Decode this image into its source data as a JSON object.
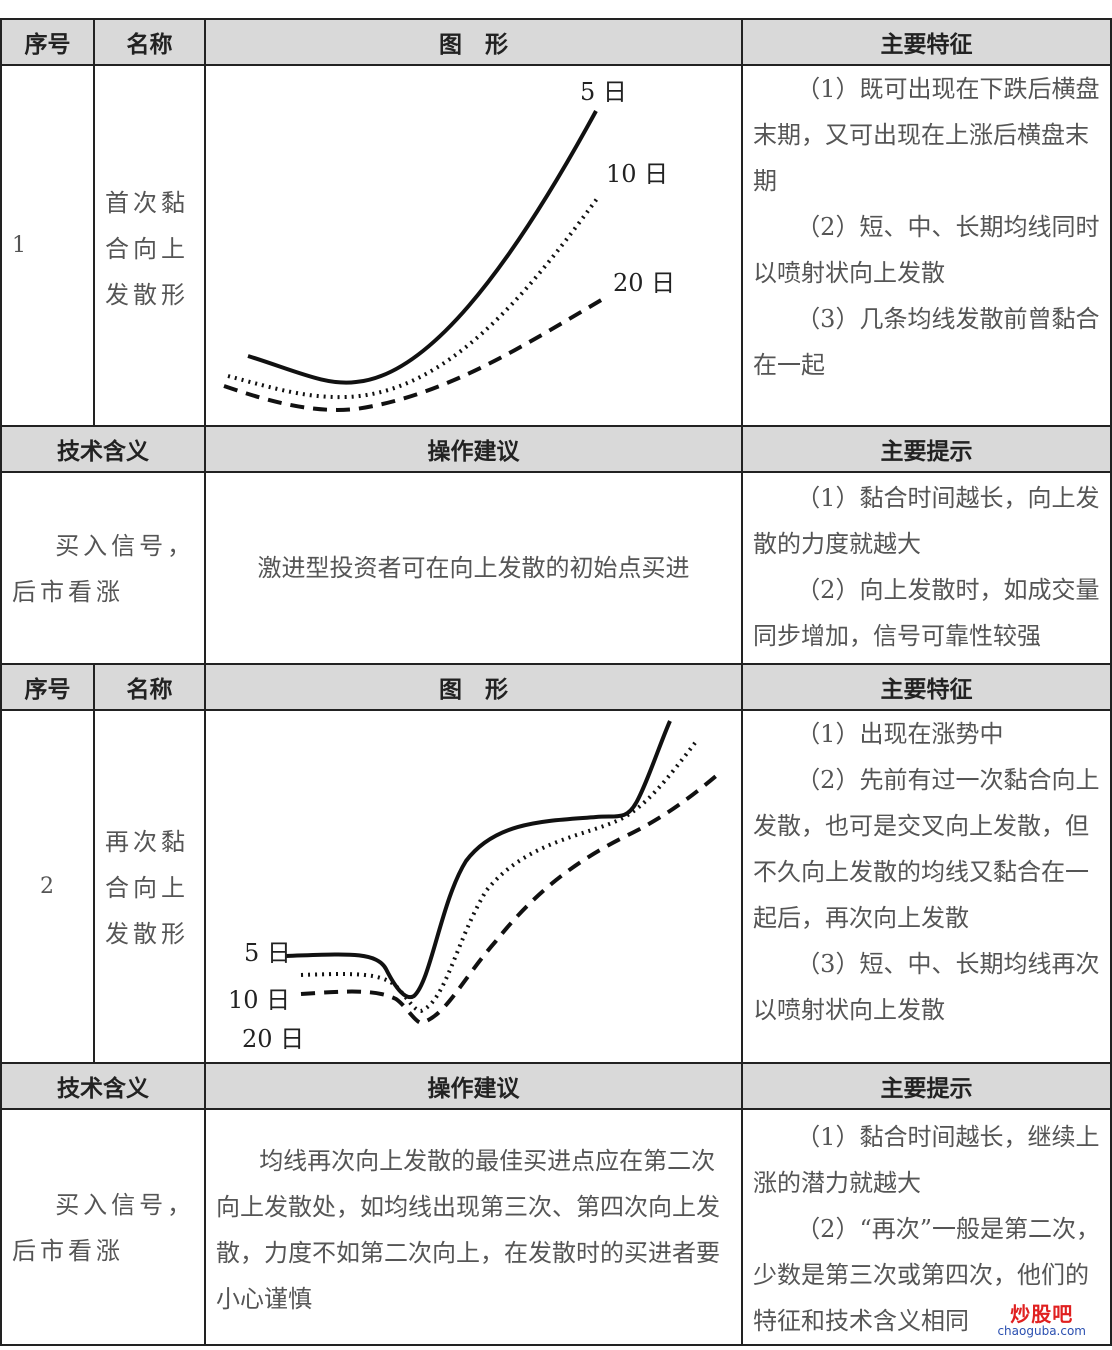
{
  "headers": {
    "seq": "序号",
    "name": "名称",
    "shape": "图　形",
    "features": "主要特征",
    "meaning": "技术含义",
    "advice": "操作建议",
    "tips": "主要提示"
  },
  "rows": [
    {
      "seq": "1",
      "name_lines": [
        "首次黏",
        "合向上",
        "发散形"
      ],
      "chart": {
        "labels": {
          "ma5": "5 日",
          "ma10": "10 日",
          "ma20": "20 日"
        }
      },
      "features": [
        "（1）既可出现在下跌后横盘末期，又可出现在上涨后横盘末期",
        "（2）短、中、长期均线同时以喷射状向上发散",
        "（3）几条均线发散前曾黏合在一起"
      ],
      "meaning": "买入信号，后市看涨",
      "advice": "激进型投资者可在向上发散的初始点买进",
      "tips": [
        "（1）黏合时间越长，向上发散的力度就越大",
        "（2）向上发散时，如成交量同步增加，信号可靠性较强"
      ]
    },
    {
      "seq": "2",
      "name_lines": [
        "再次黏",
        "合向上",
        "发散形"
      ],
      "chart": {
        "labels": {
          "ma5": "5 日",
          "ma10": "10 日",
          "ma20": "20 日"
        }
      },
      "features": [
        "（1）出现在涨势中",
        "（2）先前有过一次黏合向上发散，也可是交叉向上发散，但不久向上发散的均线又黏合在一起后，再次向上发散",
        "（3）短、中、长期均线再次以喷射状向上发散"
      ],
      "meaning": "买入信号，后市看涨",
      "advice": "均线再次向上发散的最佳买进点应在第二次向上发散处，如均线出现第三次、第四次向上发散，力度不如第二次向上，在发散时的买进者要小心谨慎",
      "tips": [
        "（1）黏合时间越长，继续上涨的潜力就越大",
        "（2）“再次”一般是第二次，少数是第三次或第四次，他们的特征和技术含义相同"
      ]
    }
  ],
  "watermark": {
    "brand": "炒股吧",
    "domain": "chaoguba.com"
  },
  "colors": {
    "header_bg": "#d9d9d9",
    "border": "#222222",
    "text": "#555555",
    "watermark_red": "#e02020",
    "watermark_blue": "#2a4fb0"
  }
}
